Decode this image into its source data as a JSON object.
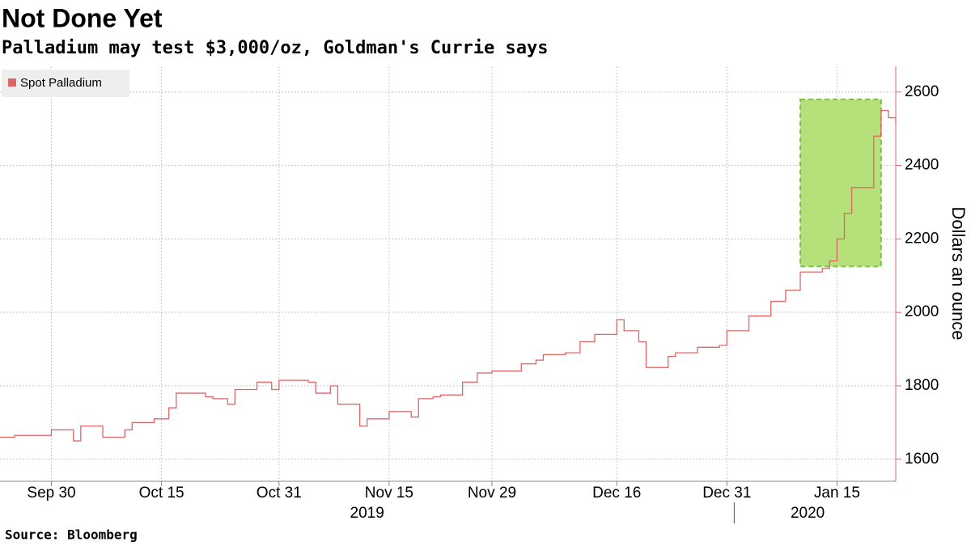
{
  "chart_data": {
    "type": "line",
    "title": "Not Done Yet",
    "subtitle": "Palladium may test $3,000/oz, Goldman's Currie says",
    "source": "Source: Bloomberg",
    "y_axis_label": "Dollars an ounce",
    "legend_position": "top-left",
    "grid": true,
    "xlim": [
      "2019-09-23",
      "2020-01-23"
    ],
    "xticks": [
      {
        "value": "2019-09-30",
        "label": "Sep 30"
      },
      {
        "value": "2019-10-15",
        "label": "Oct 15"
      },
      {
        "value": "2019-10-31",
        "label": "Oct 31"
      },
      {
        "value": "2019-11-15",
        "label": "Nov 15"
      },
      {
        "value": "2019-11-29",
        "label": "Nov 29"
      },
      {
        "value": "2019-12-16",
        "label": "Dec 16"
      },
      {
        "value": "2019-12-31",
        "label": "Dec 31"
      },
      {
        "value": "2020-01-15",
        "label": "Jan 15"
      }
    ],
    "year_labels": [
      {
        "value": "2019-11-12",
        "label": "2019"
      },
      {
        "value": "2020-01-11",
        "label": "2020"
      }
    ],
    "ylim": [
      1540,
      2670
    ],
    "yticks": [
      1600,
      1800,
      2000,
      2200,
      2400,
      2600
    ],
    "x": [
      "2019-09-23",
      "2019-09-25",
      "2019-09-30",
      "2019-10-03",
      "2019-10-04",
      "2019-10-07",
      "2019-10-10",
      "2019-10-11",
      "2019-10-14",
      "2019-10-16",
      "2019-10-17",
      "2019-10-21",
      "2019-10-22",
      "2019-10-24",
      "2019-10-25",
      "2019-10-28",
      "2019-10-30",
      "2019-10-31",
      "2019-11-04",
      "2019-11-05",
      "2019-11-07",
      "2019-11-08",
      "2019-11-11",
      "2019-11-12",
      "2019-11-15",
      "2019-11-18",
      "2019-11-19",
      "2019-11-21",
      "2019-11-22",
      "2019-11-25",
      "2019-11-27",
      "2019-11-29",
      "2019-12-03",
      "2019-12-05",
      "2019-12-06",
      "2019-12-09",
      "2019-12-11",
      "2019-12-13",
      "2019-12-16",
      "2019-12-17",
      "2019-12-19",
      "2019-12-20",
      "2019-12-23",
      "2019-12-24",
      "2019-12-27",
      "2019-12-30",
      "2019-12-31",
      "2020-01-02",
      "2020-01-03",
      "2020-01-06",
      "2020-01-08",
      "2020-01-10",
      "2020-01-13",
      "2020-01-14",
      "2020-01-15",
      "2020-01-16",
      "2020-01-17",
      "2020-01-20",
      "2020-01-21",
      "2020-01-22",
      "2020-01-23"
    ],
    "series": [
      {
        "name": "Spot Palladium",
        "color": "#e06666",
        "values": [
          1660,
          1665,
          1680,
          1650,
          1690,
          1660,
          1680,
          1700,
          1710,
          1740,
          1780,
          1770,
          1765,
          1750,
          1790,
          1810,
          1790,
          1815,
          1810,
          1780,
          1800,
          1750,
          1690,
          1710,
          1730,
          1715,
          1765,
          1770,
          1775,
          1810,
          1835,
          1840,
          1860,
          1870,
          1885,
          1890,
          1920,
          1940,
          1980,
          1950,
          1920,
          1850,
          1880,
          1890,
          1905,
          1910,
          1950,
          1950,
          1990,
          2030,
          2060,
          2110,
          2120,
          2140,
          2200,
          2270,
          2340,
          2480,
          2550,
          2530,
          2515
        ]
      }
    ],
    "highlight": {
      "x": [
        "2020-01-10",
        "2020-01-21"
      ],
      "y": [
        2125,
        2580
      ],
      "color": "#b5e07a"
    }
  }
}
